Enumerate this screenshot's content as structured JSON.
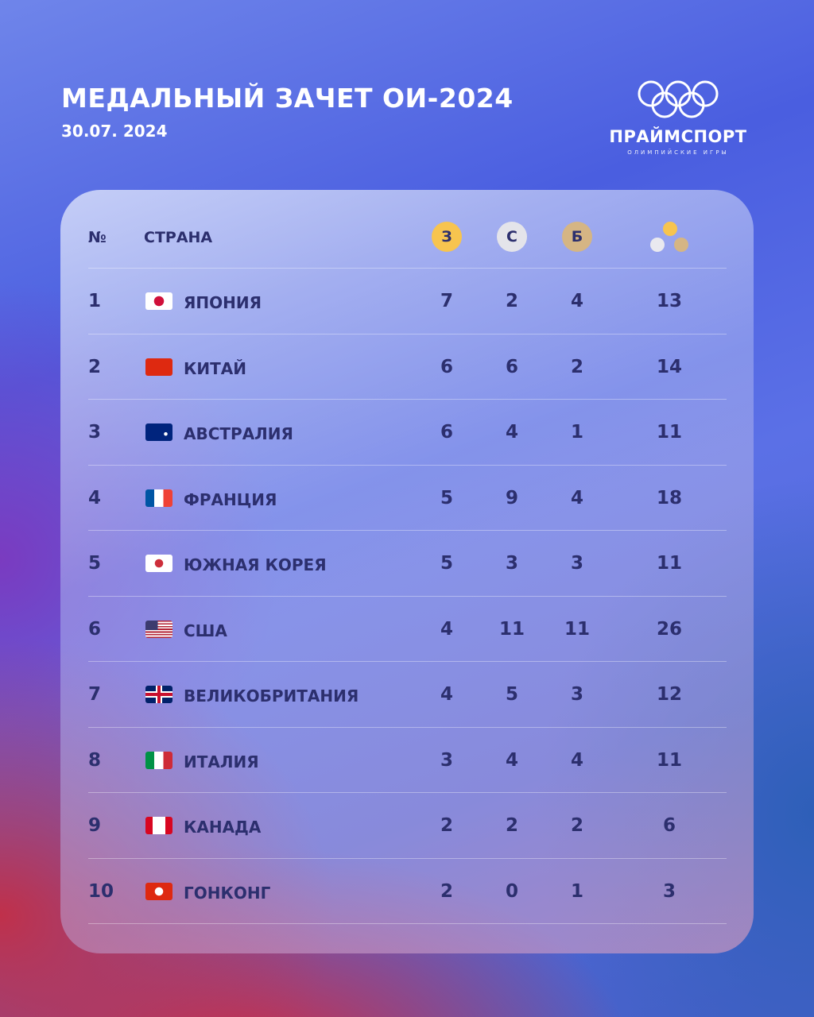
{
  "header": {
    "title": "МЕДАЛЬНЫЙ ЗАЧЕТ ОИ-2024",
    "date": "30.07. 2024"
  },
  "logo": {
    "icon": "olympic-rings-icon",
    "brand": "ПРАЙМСПОРТ",
    "subtitle": "ОЛИМПИЙСКИЕ ИГРЫ"
  },
  "table": {
    "columns": {
      "rank": "№",
      "country": "СТРАНА",
      "gold": "З",
      "silver": "С",
      "bronze": "Б",
      "total_icon": "medals-total-icon"
    },
    "colors": {
      "gold": "#f7c44f",
      "silver": "#e4e4ea",
      "bronze": "#d5b584",
      "text": "#2c2f6e"
    },
    "rows": [
      {
        "rank": "1",
        "flag": "jp",
        "country": "ЯПОНИЯ",
        "gold": "7",
        "silver": "2",
        "bronze": "4",
        "total": "13"
      },
      {
        "rank": "2",
        "flag": "cn-f",
        "country": "КИТАЙ",
        "gold": "6",
        "silver": "6",
        "bronze": "2",
        "total": "14"
      },
      {
        "rank": "3",
        "flag": "au",
        "country": "АВСТРАЛИЯ",
        "gold": "6",
        "silver": "4",
        "bronze": "1",
        "total": "11"
      },
      {
        "rank": "4",
        "flag": "fr",
        "country": "ФРАНЦИЯ",
        "gold": "5",
        "silver": "9",
        "bronze": "4",
        "total": "18"
      },
      {
        "rank": "5",
        "flag": "kr",
        "country": "ЮЖНАЯ КОРЕЯ",
        "gold": "5",
        "silver": "3",
        "bronze": "3",
        "total": "11"
      },
      {
        "rank": "6",
        "flag": "us",
        "country": "США",
        "gold": "4",
        "silver": "11",
        "bronze": "11",
        "total": "26"
      },
      {
        "rank": "7",
        "flag": "gb",
        "country": "ВЕЛИКОБРИТАНИЯ",
        "gold": "4",
        "silver": "5",
        "bronze": "3",
        "total": "12"
      },
      {
        "rank": "8",
        "flag": "it",
        "country": "ИТАЛИЯ",
        "gold": "3",
        "silver": "4",
        "bronze": "4",
        "total": "11"
      },
      {
        "rank": "9",
        "flag": "ca",
        "country": "КАНАДА",
        "gold": "2",
        "silver": "2",
        "bronze": "2",
        "total": "6"
      },
      {
        "rank": "10",
        "flag": "hk",
        "country": "ГОНКОНГ",
        "gold": "2",
        "silver": "0",
        "bronze": "1",
        "total": "3"
      }
    ]
  }
}
